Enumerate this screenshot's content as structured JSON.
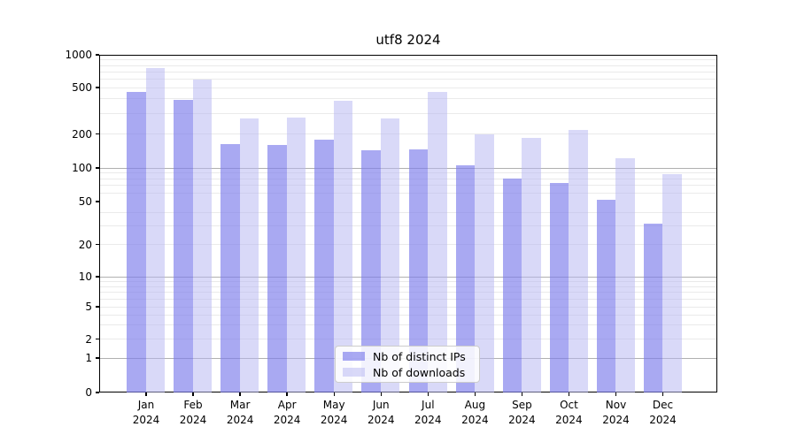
{
  "title": "utf8 2024",
  "legend": {
    "items": [
      {
        "label": "Nb of distinct IPs",
        "color": "rgba(125,125,235,0.66)"
      },
      {
        "label": "Nb of downloads",
        "color": "rgba(182,182,242,0.52)"
      }
    ]
  },
  "chart_data": {
    "type": "bar",
    "title": "utf8 2024",
    "categories": [
      "Jan 2024",
      "Feb 2024",
      "Mar 2024",
      "Apr 2024",
      "May 2024",
      "Jun 2024",
      "Jul 2024",
      "Aug 2024",
      "Sep 2024",
      "Oct 2024",
      "Nov 2024",
      "Dec 2024"
    ],
    "series": [
      {
        "name": "Nb of distinct IPs",
        "color": "rgba(125,125,235,0.66)",
        "values": [
          470,
          400,
          165,
          162,
          181,
          146,
          148,
          107,
          82,
          75,
          53,
          32
        ]
      },
      {
        "name": "Nb of downloads",
        "color": "rgba(182,182,242,0.52)",
        "values": [
          770,
          600,
          275,
          283,
          390,
          275,
          470,
          201,
          189,
          222,
          124,
          89
        ]
      }
    ],
    "xlabel": "",
    "ylabel": "",
    "yscale": "symlog",
    "ylim": [
      0,
      1000
    ],
    "yticks": [
      0,
      1,
      2,
      5,
      10,
      20,
      50,
      100,
      200,
      500,
      1000
    ],
    "minor_grid_values": [
      2,
      3,
      4,
      5,
      6,
      7,
      8,
      9,
      20,
      30,
      40,
      60,
      70,
      80,
      90,
      200,
      300,
      400,
      500,
      600,
      700,
      800,
      900
    ],
    "major_grid_values": [
      1,
      10,
      100
    ],
    "grid": true,
    "legend_position": "lower center"
  }
}
